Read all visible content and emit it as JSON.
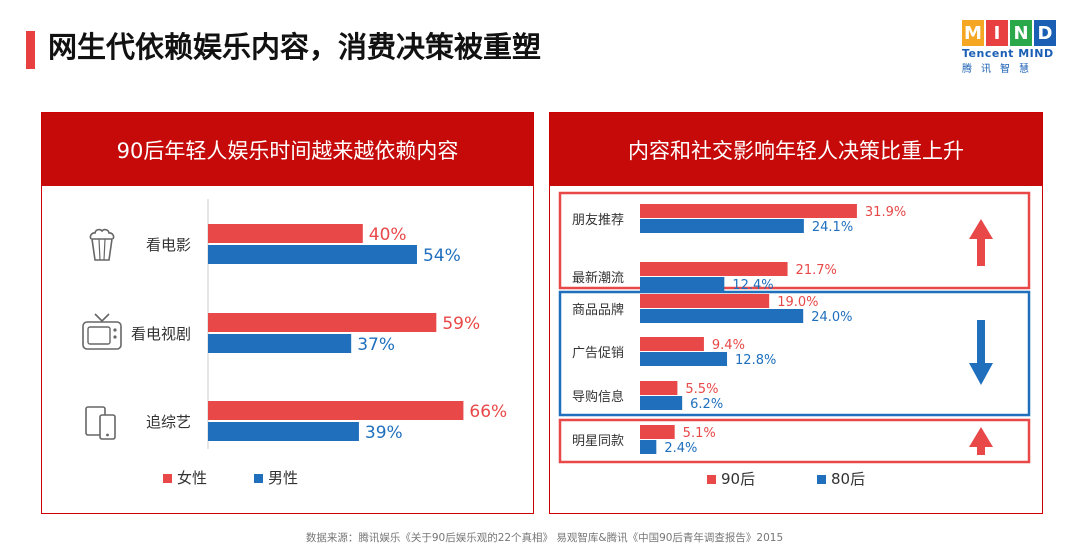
{
  "page": {
    "title": "网生代依赖娱乐内容，消费决策被重塑",
    "source": "数据来源：腾讯娱乐《关于90后娱乐观的22个真相》 易观智库&腾讯《中国90后青年调查报告》2015"
  },
  "logo": {
    "letters": [
      "M",
      "I",
      "N",
      "D"
    ],
    "letter_colors": [
      "#f5a623",
      "#e84040",
      "#2aa84a",
      "#1a5fb4"
    ],
    "sub_text": "Tencent MIND",
    "cn_text": "腾讯智慧"
  },
  "colors": {
    "female": "#e84848",
    "male": "#1f6fbd",
    "up_arrow": "#e84848",
    "down_arrow": "#1f6fbd"
  },
  "chart_data": [
    {
      "type": "bar",
      "orientation": "horizontal",
      "title": "90后年轻人娱乐时间越来越依赖内容",
      "categories": [
        "看电影",
        "看电视剧",
        "追综艺"
      ],
      "category_icons": [
        "popcorn-icon",
        "tv-icon",
        "devices-icon"
      ],
      "series": [
        {
          "name": "女性",
          "values": [
            40,
            59,
            66
          ],
          "labels": [
            "40%",
            "59%",
            "66%"
          ]
        },
        {
          "name": "男性",
          "values": [
            54,
            37,
            39
          ],
          "labels": [
            "54%",
            "37%",
            "39%"
          ]
        }
      ],
      "legend": "bottom",
      "xlim": [
        0,
        100
      ]
    },
    {
      "type": "bar",
      "orientation": "horizontal",
      "title": "内容和社交影响年轻人决策比重上升",
      "categories": [
        "朋友推荐",
        "最新潮流",
        "商品品牌",
        "广告促销",
        "导购信息",
        "明星同款"
      ],
      "series": [
        {
          "name": "90后",
          "values": [
            31.9,
            21.7,
            19.0,
            9.4,
            5.5,
            5.1
          ],
          "labels": [
            "31.9%",
            "21.7%",
            "19.0%",
            "9.4%",
            "5.5%",
            "5.1%"
          ]
        },
        {
          "name": "80后",
          "values": [
            24.1,
            12.4,
            24.0,
            12.8,
            6.2,
            2.4
          ],
          "labels": [
            "24.1%",
            "12.4%",
            "24.0%",
            "12.8%",
            "6.2%",
            "2.4%"
          ]
        }
      ],
      "groups": [
        {
          "categories": [
            "朋友推荐",
            "最新潮流"
          ],
          "trend": "up",
          "color": "#e84848"
        },
        {
          "categories": [
            "商品品牌",
            "广告促销",
            "导购信息"
          ],
          "trend": "down",
          "color": "#1f6fbd"
        },
        {
          "categories": [
            "明星同款"
          ],
          "trend": "up",
          "color": "#e84848"
        }
      ],
      "legend": "bottom",
      "xlim": [
        0,
        35
      ]
    }
  ]
}
